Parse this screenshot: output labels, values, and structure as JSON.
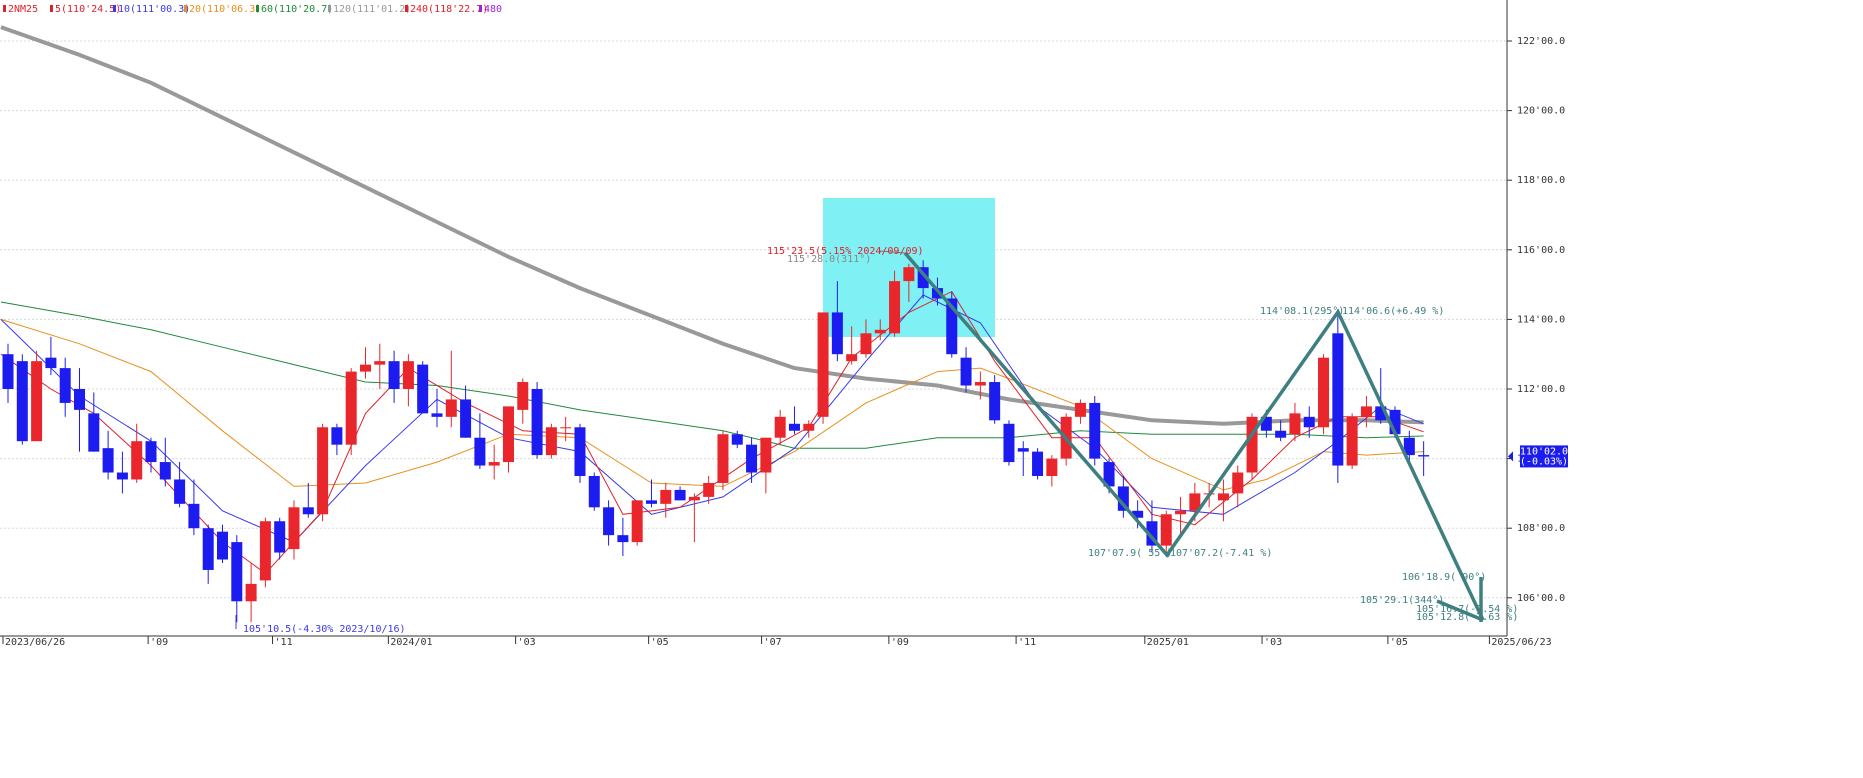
{
  "chart_data": {
    "type": "candlestick",
    "legend": [
      {
        "label": "2NM25",
        "color": "#e0202a"
      },
      {
        "label": "5(110'24.5)",
        "color": "#e0202a"
      },
      {
        "label": "10(111'00.3)",
        "color": "#3a3ae8"
      },
      {
        "label": "20(110'06.3)",
        "color": "#e8901c"
      },
      {
        "label": "60(110'20.7)",
        "color": "#1f8a3a"
      },
      {
        "label": "120(111'01.2)",
        "color": "#999999"
      },
      {
        "label": "240(118'22.7)",
        "color": "#e0202a"
      },
      {
        "label": "480",
        "color": "#a020e0"
      }
    ],
    "up_color": "#e8262b",
    "down_color": "#1c1cf0",
    "open": [
      113.0,
      112.8,
      110.5,
      112.9,
      112.6,
      112.0,
      111.3,
      110.3,
      109.6,
      109.4,
      110.5,
      109.9,
      109.4,
      108.7,
      108.0,
      107.9,
      107.6,
      105.9,
      106.5,
      108.2,
      107.4,
      108.6,
      108.4,
      110.9,
      110.4,
      112.5,
      112.7,
      112.8,
      112.0,
      112.7,
      111.3,
      111.2,
      111.7,
      110.6,
      109.8,
      109.9,
      111.4,
      112.0,
      110.1,
      110.9,
      110.9,
      109.5,
      108.6,
      107.8,
      107.6,
      108.8,
      108.7,
      109.1,
      108.8,
      108.9,
      109.3,
      110.7,
      110.4,
      109.6,
      110.6,
      111.0,
      110.8,
      111.2,
      114.2,
      112.8,
      113.0,
      113.6,
      113.6,
      115.1,
      115.5,
      114.9,
      114.6,
      112.9,
      112.1,
      112.2,
      111.0,
      110.3,
      110.2,
      109.5,
      110.0,
      111.2,
      111.6,
      109.9,
      109.2,
      108.5,
      108.2,
      107.5,
      108.4,
      108.5,
      109.0,
      108.8,
      109.0,
      109.6,
      111.2,
      110.8,
      110.7,
      111.2,
      110.9,
      113.6,
      109.8,
      111.2,
      111.5,
      111.4,
      110.6,
      110.1
    ],
    "high": [
      113.3,
      113.0,
      113.1,
      113.5,
      112.9,
      112.6,
      111.9,
      110.8,
      110.2,
      111.0,
      110.6,
      110.6,
      109.9,
      109.4,
      108.1,
      108.1,
      107.8,
      107.0,
      108.3,
      108.3,
      108.8,
      109.3,
      111.0,
      111.0,
      112.6,
      113.2,
      113.3,
      113.1,
      113.0,
      112.8,
      112.0,
      113.1,
      112.1,
      111.3,
      110.4,
      111.5,
      112.3,
      112.2,
      111.0,
      111.2,
      111.0,
      109.6,
      108.8,
      108.3,
      108.8,
      109.4,
      109.3,
      109.2,
      109.0,
      109.5,
      110.8,
      110.8,
      110.6,
      110.6,
      111.4,
      111.5,
      111.1,
      114.2,
      115.1,
      113.8,
      114.0,
      114.0,
      115.4,
      115.6,
      115.7,
      115.2,
      114.8,
      113.2,
      112.5,
      112.4,
      111.1,
      110.5,
      110.3,
      110.1,
      111.3,
      111.7,
      111.8,
      110.0,
      109.5,
      108.8,
      108.8,
      108.5,
      108.9,
      109.3,
      109.3,
      109.4,
      109.8,
      111.3,
      111.4,
      111.1,
      111.6,
      111.5,
      113.0,
      114.3,
      111.3,
      111.8,
      112.6,
      111.5,
      110.8,
      110.5
    ],
    "low": [
      111.6,
      110.4,
      110.5,
      112.4,
      111.2,
      110.2,
      110.2,
      109.4,
      109.0,
      109.3,
      109.6,
      109.2,
      108.6,
      107.8,
      106.4,
      107.0,
      105.3,
      105.3,
      106.3,
      107.1,
      107.1,
      108.3,
      108.2,
      110.1,
      110.1,
      112.3,
      112.0,
      111.6,
      111.5,
      111.3,
      110.9,
      110.9,
      110.6,
      109.7,
      109.4,
      109.6,
      111.0,
      110.0,
      110.0,
      110.5,
      109.3,
      108.5,
      107.5,
      107.2,
      107.5,
      108.6,
      108.3,
      108.8,
      107.6,
      108.7,
      109.1,
      110.3,
      109.3,
      109.0,
      110.4,
      110.7,
      110.6,
      111.0,
      112.8,
      112.7,
      112.9,
      113.4,
      113.5,
      114.5,
      114.6,
      114.4,
      112.9,
      111.9,
      111.7,
      111.0,
      109.8,
      109.5,
      109.4,
      109.2,
      109.8,
      111.0,
      109.8,
      109.0,
      108.3,
      108.0,
      107.3,
      107.3,
      107.8,
      108.2,
      108.6,
      108.2,
      108.6,
      109.4,
      110.6,
      110.5,
      110.5,
      110.6,
      110.7,
      109.3,
      109.7,
      110.9,
      111.0,
      110.6,
      109.8,
      109.5
    ],
    "close": [
      112.0,
      110.5,
      112.8,
      112.6,
      111.6,
      111.4,
      110.2,
      109.6,
      109.4,
      110.5,
      109.9,
      109.4,
      108.7,
      108.0,
      106.8,
      107.1,
      105.9,
      106.4,
      108.2,
      107.3,
      108.6,
      108.4,
      110.9,
      110.4,
      112.5,
      112.7,
      112.8,
      112.0,
      112.8,
      111.3,
      111.2,
      111.7,
      110.6,
      109.8,
      109.9,
      111.5,
      112.2,
      110.1,
      110.9,
      110.9,
      109.5,
      108.6,
      107.8,
      107.6,
      108.8,
      108.7,
      109.1,
      108.8,
      108.9,
      109.3,
      110.7,
      110.4,
      109.6,
      110.6,
      111.2,
      110.8,
      111.0,
      114.2,
      113.0,
      113.0,
      113.6,
      113.7,
      115.1,
      115.5,
      114.9,
      114.6,
      113.0,
      112.1,
      112.2,
      111.1,
      109.9,
      110.2,
      109.5,
      110.0,
      111.2,
      111.6,
      110.0,
      109.2,
      108.5,
      108.3,
      107.5,
      108.4,
      108.5,
      109.0,
      109.0,
      109.0,
      109.6,
      111.2,
      110.8,
      110.6,
      111.3,
      110.9,
      112.9,
      109.8,
      111.2,
      111.5,
      111.1,
      110.7,
      110.1,
      110.06
    ],
    "ma_lines": [
      {
        "color": "#999999",
        "width": 4,
        "x": [
          -0.5,
          5,
          10,
          15,
          20,
          25,
          30,
          35,
          40,
          45,
          50,
          55,
          60,
          65,
          70,
          75,
          80,
          85,
          90,
          95,
          99
        ],
        "values": [
          122.4,
          121.6,
          120.8,
          119.8,
          118.8,
          117.8,
          116.8,
          115.8,
          114.9,
          114.1,
          113.3,
          112.6,
          112.3,
          112.1,
          111.7,
          111.4,
          111.1,
          111.0,
          111.1,
          111.1,
          111.04
        ]
      },
      {
        "color": "#1f8a3a",
        "width": 1,
        "x": [
          -0.5,
          5,
          10,
          15,
          20,
          25,
          30,
          35,
          40,
          45,
          50,
          55,
          60,
          65,
          70,
          75,
          80,
          85,
          90,
          95,
          99
        ],
        "values": [
          114.5,
          114.1,
          113.7,
          113.2,
          112.7,
          112.2,
          112.1,
          111.8,
          111.4,
          111.1,
          110.8,
          110.3,
          110.3,
          110.6,
          110.6,
          110.8,
          110.7,
          110.7,
          110.7,
          110.6,
          110.65
        ]
      },
      {
        "color": "#e8901c",
        "width": 1,
        "x": [
          -0.5,
          5,
          10,
          15,
          20,
          25,
          30,
          35,
          40,
          45,
          50,
          55,
          60,
          65,
          68,
          70,
          75,
          80,
          85,
          88,
          92,
          95,
          99
        ],
        "values": [
          114.0,
          113.3,
          112.5,
          110.8,
          109.2,
          109.3,
          109.9,
          110.7,
          110.6,
          109.3,
          109.2,
          110.2,
          111.6,
          112.5,
          112.6,
          112.3,
          111.5,
          110.0,
          109.1,
          109.4,
          110.2,
          110.1,
          110.2
        ]
      },
      {
        "color": "#3a3ae8",
        "width": 1,
        "x": [
          -0.5,
          5,
          10,
          15,
          20,
          25,
          30,
          35,
          40,
          45,
          50,
          55,
          60,
          64,
          68,
          72,
          76,
          80,
          85,
          90,
          93,
          96,
          99
        ],
        "values": [
          114.0,
          111.8,
          110.5,
          108.5,
          107.6,
          109.8,
          111.7,
          110.6,
          110.2,
          108.4,
          108.9,
          110.3,
          112.8,
          114.7,
          113.9,
          111.5,
          110.3,
          108.6,
          108.4,
          109.6,
          110.5,
          111.5,
          111.0
        ]
      },
      {
        "color": "#e0202a",
        "width": 1,
        "x": [
          -0.5,
          3,
          6,
          10,
          15,
          18,
          22,
          25,
          28,
          32,
          36,
          40,
          43,
          47,
          52,
          56,
          59,
          63,
          66,
          69,
          73,
          76,
          80,
          83,
          87,
          90,
          93,
          96,
          99
        ],
        "values": [
          113.0,
          112.0,
          111.3,
          109.8,
          107.6,
          106.7,
          108.5,
          111.3,
          112.6,
          111.6,
          110.8,
          110.7,
          108.4,
          108.6,
          110.0,
          110.9,
          112.9,
          114.2,
          114.8,
          112.8,
          110.6,
          110.6,
          108.4,
          108.1,
          109.4,
          110.6,
          111.2,
          111.2,
          110.77
        ]
      }
    ],
    "ylim": [
      104.902,
      123.178
    ],
    "yticks": [
      {
        "value": 106,
        "label": "106'00.0"
      },
      {
        "value": 108,
        "label": "108'00.0"
      },
      {
        "value": 110,
        "label": "110'00.0"
      },
      {
        "value": 112,
        "label": "112'00.0"
      },
      {
        "value": 114,
        "label": "114'00.0"
      },
      {
        "value": 116,
        "label": "116'00.0"
      },
      {
        "value": 118,
        "label": "118'00.0"
      },
      {
        "value": 120,
        "label": "120'00.0"
      },
      {
        "value": 122,
        "label": "122'00.0"
      }
    ],
    "xlim": [
      -0.56,
      104.83
    ],
    "xticks": [
      {
        "value": -0.35,
        "label": "2023/06/26"
      },
      {
        "value": 9.8,
        "label": "'09"
      },
      {
        "value": 18.5,
        "label": "'11"
      },
      {
        "value": 26.6,
        "label": "2024/01"
      },
      {
        "value": 35.5,
        "label": "'03"
      },
      {
        "value": 44.8,
        "label": "'05"
      },
      {
        "value": 52.7,
        "label": "'07"
      },
      {
        "value": 61.6,
        "label": "'09"
      },
      {
        "value": 70.5,
        "label": "'11"
      },
      {
        "value": 79.5,
        "label": "2025/01"
      },
      {
        "value": 87.7,
        "label": "'03"
      },
      {
        "value": 96.5,
        "label": "'05"
      },
      {
        "value": 103.6,
        "label": "2025/06/23"
      }
    ],
    "grid": true,
    "last_price": {
      "label": "110'02.0",
      "change": "(-0.03%)",
      "value": 110.0625
    },
    "annotations": [
      "115'23.5(5.15% 2024/09/09)",
      "115'28.0(311°)",
      "105'10.5(-4.30% 2023/10/16)",
      "114'08.1(295°)",
      "114'06.6(+6.49 %)",
      "107'07.9( 55°)",
      "107'07.2(-7.41 %)",
      "106'18.9( 90°)",
      "105'29.1(344°)",
      "105'16.7(-7.54 %)",
      "105'12.8(-7.63 %)"
    ]
  }
}
